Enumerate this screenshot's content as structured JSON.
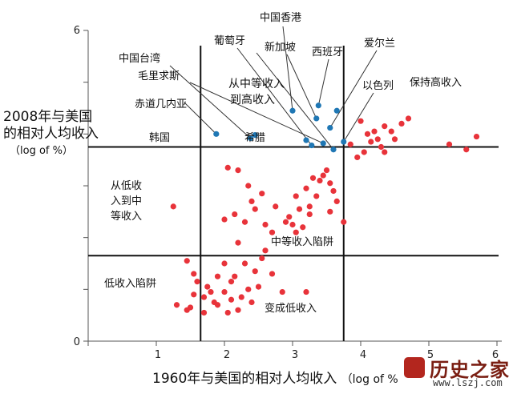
{
  "chart_data": {
    "type": "scatter",
    "xlabel": "1960年与美国的相对人均收入",
    "xlabel_unit": "（log of %",
    "ylabel": "2008年与美国的相对人均收入",
    "ylabel_unit": "（log of %）",
    "xlim": [
      0,
      6
    ],
    "ylim": [
      0,
      6
    ],
    "xticks": [
      "1",
      "2",
      "3",
      "4",
      "5",
      "6"
    ],
    "yticks": [
      "0",
      "6"
    ],
    "thresholds": {
      "x": [
        1.65,
        3.75
      ],
      "y": [
        1.65,
        3.75
      ]
    },
    "colors": {
      "high": "#1f77b4",
      "other": "#e8333a",
      "line": "#111111"
    },
    "blue_points": [
      [
        1.88,
        4.0
      ],
      [
        2.38,
        3.92
      ],
      [
        2.45,
        3.98
      ],
      [
        3.0,
        4.45
      ],
      [
        3.2,
        3.88
      ],
      [
        3.28,
        3.78
      ],
      [
        3.35,
        4.3
      ],
      [
        3.38,
        4.55
      ],
      [
        3.45,
        3.82
      ],
      [
        3.55,
        4.12
      ],
      [
        3.65,
        4.45
      ],
      [
        3.75,
        3.85
      ],
      [
        3.6,
        3.7
      ]
    ],
    "red_points": [
      [
        1.5,
        0.65
      ],
      [
        1.7,
        0.55
      ],
      [
        1.55,
        0.9
      ],
      [
        1.3,
        0.7
      ],
      [
        1.45,
        0.6
      ],
      [
        1.25,
        2.6
      ],
      [
        1.45,
        1.55
      ],
      [
        1.6,
        1.15
      ],
      [
        1.75,
        1.05
      ],
      [
        1.7,
        0.85
      ],
      [
        1.9,
        0.7
      ],
      [
        2.0,
        0.95
      ],
      [
        2.1,
        0.8
      ],
      [
        1.85,
        0.75
      ],
      [
        2.05,
        0.55
      ],
      [
        2.2,
        0.6
      ],
      [
        2.25,
        0.85
      ],
      [
        2.4,
        0.75
      ],
      [
        2.15,
        1.25
      ],
      [
        2.35,
        1.0
      ],
      [
        2.5,
        1.05
      ],
      [
        2.45,
        1.35
      ],
      [
        2.7,
        1.3
      ],
      [
        2.85,
        0.95
      ],
      [
        2.0,
        1.5
      ],
      [
        1.9,
        1.25
      ],
      [
        2.3,
        1.5
      ],
      [
        2.55,
        1.6
      ],
      [
        2.6,
        1.75
      ],
      [
        2.2,
        1.9
      ],
      [
        2.0,
        2.35
      ],
      [
        2.15,
        2.45
      ],
      [
        2.3,
        2.3
      ],
      [
        2.45,
        2.55
      ],
      [
        2.6,
        2.25
      ],
      [
        2.7,
        2.1
      ],
      [
        2.9,
        2.3
      ],
      [
        2.75,
        2.6
      ],
      [
        2.55,
        2.85
      ],
      [
        2.4,
        2.7
      ],
      [
        2.35,
        3.0
      ],
      [
        2.05,
        3.35
      ],
      [
        2.2,
        3.3
      ],
      [
        3.0,
        2.25
      ],
      [
        3.1,
        2.55
      ],
      [
        3.25,
        2.6
      ],
      [
        3.05,
        2.8
      ],
      [
        3.2,
        2.95
      ],
      [
        3.35,
        2.8
      ],
      [
        3.4,
        3.1
      ],
      [
        3.3,
        3.15
      ],
      [
        3.5,
        3.3
      ],
      [
        3.55,
        3.05
      ],
      [
        3.45,
        3.2
      ],
      [
        3.6,
        2.9
      ],
      [
        3.65,
        2.7
      ],
      [
        3.55,
        2.5
      ],
      [
        3.15,
        2.2
      ],
      [
        3.05,
        2.1
      ],
      [
        2.95,
        2.4
      ],
      [
        3.25,
        2.45
      ],
      [
        3.75,
        2.3
      ],
      [
        3.85,
        3.8
      ],
      [
        3.95,
        3.55
      ],
      [
        4.05,
        3.65
      ],
      [
        4.1,
        4.0
      ],
      [
        4.2,
        4.05
      ],
      [
        4.25,
        3.9
      ],
      [
        4.3,
        3.75
      ],
      [
        4.35,
        4.15
      ],
      [
        4.45,
        4.05
      ],
      [
        4.5,
        3.9
      ],
      [
        4.6,
        4.2
      ],
      [
        4.7,
        4.3
      ],
      [
        5.3,
        3.8
      ],
      [
        5.55,
        3.7
      ],
      [
        5.7,
        3.95
      ],
      [
        4.0,
        4.25
      ],
      [
        4.15,
        3.85
      ],
      [
        4.35,
        3.65
      ],
      [
        3.2,
        0.95
      ],
      [
        1.8,
        0.95
      ],
      [
        1.55,
        1.3
      ],
      [
        2.1,
        1.15
      ]
    ],
    "region_labels": [
      {
        "text": "从低收入到中等收入",
        "lines": [
          "从低收",
          "入到中",
          "等收入"
        ]
      },
      {
        "text": "中等收入陷阱"
      },
      {
        "text": "低收入陷阱"
      },
      {
        "text": "变成低收入"
      },
      {
        "text": "从中等收入到高收入",
        "lines": [
          "从中等收入",
          "到高收入"
        ]
      },
      {
        "text": "保持高收入"
      }
    ],
    "economy_labels": [
      "中国香港",
      "葡萄牙",
      "新加坡",
      "西班牙",
      "爱尔兰",
      "中国台湾",
      "毛里求斯",
      "赤道几内亚",
      "以色列",
      "韩国",
      "希腊"
    ]
  },
  "watermark": {
    "title": "历史之家",
    "url": "www.lszj.com"
  }
}
